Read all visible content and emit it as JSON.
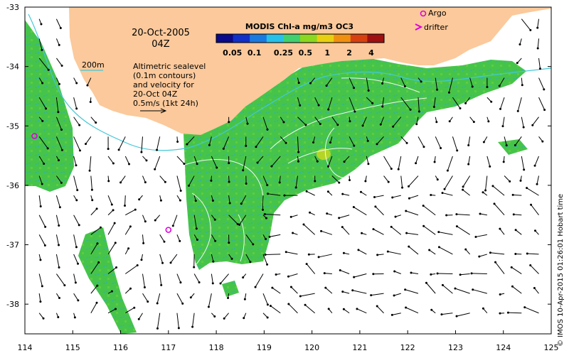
{
  "map": {
    "date_title": "20-Oct-2005",
    "time_title": "04Z",
    "isobath_label": "200m",
    "description_lines": [
      "Altimetric sealevel",
      "(0.1m contours)",
      "and velocity for",
      "20-Oct 04Z",
      "0.5m/s (1kt 24h)"
    ],
    "credit": "© IMOS 10-Apr-2015 01:26:01 Hobart time",
    "colorbar": {
      "title": "MODIS Chl-a mg/m3 OC3",
      "labels": [
        "0.05",
        "0.1",
        "0.25",
        "0.5",
        "1",
        "2",
        "4"
      ],
      "colors": [
        "#0a0a8a",
        "#1030c8",
        "#1a7ae0",
        "#27c0e8",
        "#40d070",
        "#8ad820",
        "#e8d010",
        "#f09010",
        "#d84010",
        "#a01010"
      ]
    },
    "legend": {
      "argo_label": "Argo",
      "drifter_label": "drifter",
      "marker_color": "#dd00dd"
    },
    "x_axis": {
      "min": 114,
      "max": 125,
      "ticks": [
        "114",
        "115",
        "116",
        "117",
        "118",
        "119",
        "120",
        "121",
        "122",
        "123",
        "124",
        "125"
      ]
    },
    "y_axis": {
      "min": -38.5,
      "max": -33,
      "ticks": [
        "-33",
        "-34",
        "-35",
        "-36",
        "-37",
        "-38"
      ]
    },
    "land_color": "#fbc99b",
    "argo_floats": [
      {
        "lon": 114.2,
        "lat": -35.17
      },
      {
        "lon": 117.0,
        "lat": -36.75
      }
    ]
  }
}
